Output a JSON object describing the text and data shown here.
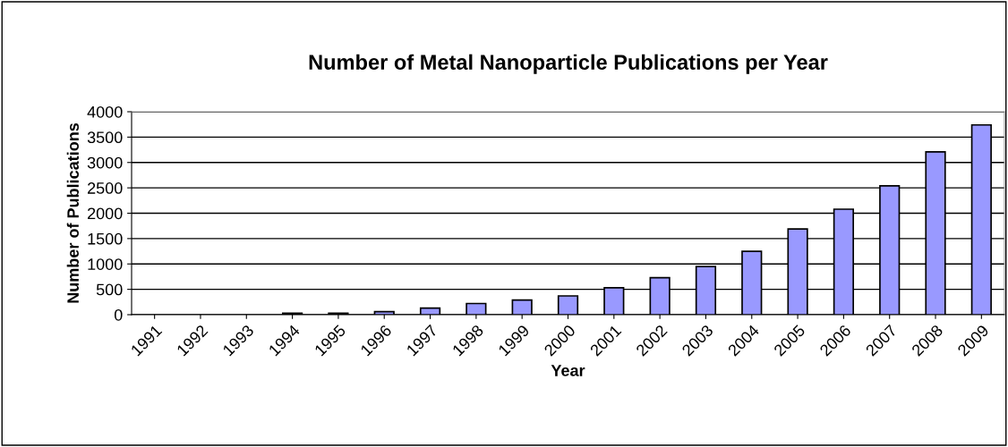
{
  "chart_data": {
    "type": "bar",
    "title": "Number of Metal Nanoparticle Publications per Year",
    "xlabel": "Year",
    "ylabel": "Number of Publications",
    "categories": [
      "1991",
      "1992",
      "1993",
      "1994",
      "1995",
      "1996",
      "1997",
      "1998",
      "1999",
      "2000",
      "2001",
      "2002",
      "2003",
      "2004",
      "2005",
      "2006",
      "2007",
      "2008",
      "2009"
    ],
    "values": [
      0,
      0,
      0,
      30,
      30,
      60,
      130,
      220,
      290,
      370,
      530,
      730,
      950,
      1250,
      1690,
      2080,
      2540,
      3210,
      3740
    ],
    "color": "#9999ff",
    "ylim": [
      0,
      4000
    ],
    "yticks": [
      0,
      500,
      1000,
      1500,
      2000,
      2500,
      3000,
      3500,
      4000
    ],
    "grid": "y",
    "legend": false
  }
}
